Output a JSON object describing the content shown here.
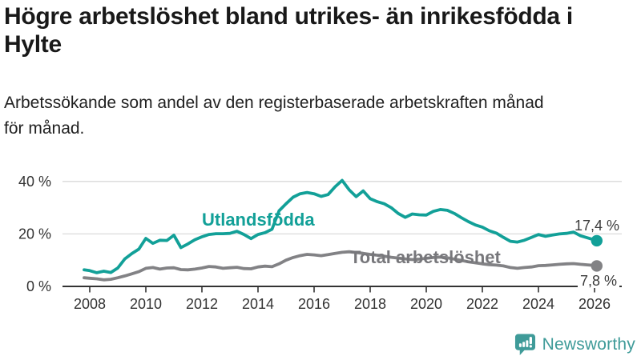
{
  "header": {
    "title_line1": "Högre arbetslöshet bland utrikes- än inrikesfödda i",
    "title_line2": "Hylte",
    "subtitle_line1": "Arbetssökande som andel av den registerbaserade arbetskraften månad",
    "subtitle_line2": "för månad."
  },
  "chart_data": {
    "type": "line",
    "title": "Högre arbetslöshet bland utrikes- än inrikesfödda i Hylte",
    "xlabel": "",
    "ylabel": "",
    "x_unit": "decimal_year",
    "xlim": [
      2007.8,
      2026.9
    ],
    "ylim": [
      0,
      44
    ],
    "grid": "horizontal",
    "legend_position": "inline-labels-on-chart",
    "x_ticks": [
      2008,
      2010,
      2012,
      2014,
      2016,
      2018,
      2020,
      2022,
      2024,
      2026
    ],
    "y_ticks": [
      {
        "value": 0,
        "label": "0 %"
      },
      {
        "value": 20,
        "label": "20 %"
      },
      {
        "value": 40,
        "label": "40 %"
      }
    ],
    "x": [
      2007.8,
      2008,
      2008.25,
      2008.5,
      2008.75,
      2009,
      2009.25,
      2009.5,
      2009.75,
      2010,
      2010.25,
      2010.5,
      2010.75,
      2011,
      2011.25,
      2011.5,
      2011.75,
      2012,
      2012.25,
      2012.5,
      2012.75,
      2013,
      2013.25,
      2013.5,
      2013.75,
      2014,
      2014.25,
      2014.5,
      2014.75,
      2015,
      2015.25,
      2015.5,
      2015.75,
      2016,
      2016.25,
      2016.5,
      2016.75,
      2017,
      2017.25,
      2017.5,
      2017.75,
      2018,
      2018.25,
      2018.5,
      2018.75,
      2019,
      2019.25,
      2019.5,
      2019.75,
      2020,
      2020.25,
      2020.5,
      2020.75,
      2021,
      2021.25,
      2021.5,
      2021.75,
      2022,
      2022.25,
      2022.5,
      2022.75,
      2023,
      2023.25,
      2023.5,
      2023.75,
      2024,
      2024.25,
      2024.5,
      2024.75,
      2025,
      2025.25,
      2025.5,
      2025.75,
      2026,
      2026.08
    ],
    "series": [
      {
        "name": "Utlandsfödda",
        "color": "#12a098",
        "end_label": "17,4 %",
        "end_value": 17.4,
        "values": [
          6.3,
          6.0,
          5.2,
          5.8,
          5.3,
          7.0,
          10.5,
          12.5,
          14.2,
          18.3,
          16.4,
          17.6,
          17.5,
          19.5,
          14.8,
          16.2,
          17.8,
          18.9,
          19.8,
          20.1,
          20.1,
          20.2,
          21.0,
          19.8,
          18.2,
          19.8,
          20.5,
          21.8,
          28.8,
          31.5,
          34.0,
          35.3,
          35.8,
          35.3,
          34.3,
          35.0,
          38.0,
          40.4,
          36.8,
          34.2,
          36.4,
          33.4,
          32.3,
          31.5,
          30.0,
          27.8,
          26.3,
          27.6,
          27.3,
          27.2,
          28.6,
          29.3,
          29.0,
          27.8,
          26.2,
          24.7,
          23.4,
          22.6,
          21.2,
          20.3,
          18.7,
          17.2,
          16.9,
          17.6,
          18.7,
          19.8,
          19.1,
          19.6,
          20.0,
          20.2,
          20.7,
          19.3,
          18.5,
          17.7,
          17.4
        ]
      },
      {
        "name": "Total arbetslöshet",
        "color": "#828285",
        "end_label": "7,8 %",
        "end_value": 7.8,
        "values": [
          3.3,
          3.1,
          2.9,
          2.5,
          2.7,
          3.3,
          4.0,
          4.8,
          5.6,
          6.9,
          7.2,
          6.6,
          7.0,
          7.1,
          6.4,
          6.3,
          6.6,
          7.0,
          7.6,
          7.4,
          6.9,
          7.1,
          7.3,
          6.8,
          6.7,
          7.4,
          7.7,
          7.5,
          8.6,
          10.0,
          11.0,
          11.7,
          12.2,
          12.0,
          11.7,
          12.1,
          12.6,
          13.0,
          13.2,
          12.9,
          12.6,
          12.2,
          11.9,
          11.5,
          11.1,
          10.8,
          10.5,
          10.2,
          10.4,
          10.7,
          11.0,
          11.2,
          10.9,
          10.4,
          9.9,
          9.4,
          9.0,
          8.6,
          8.3,
          8.1,
          7.8,
          7.2,
          6.9,
          7.2,
          7.4,
          7.9,
          8.0,
          8.2,
          8.4,
          8.6,
          8.7,
          8.4,
          8.2,
          8.0,
          7.8
        ]
      }
    ]
  },
  "footer": {
    "brand": "Newsworthy"
  },
  "colors": {
    "teal": "#12a098",
    "gray_line": "#828285",
    "gray_label": "#77777b",
    "title_text": "#191919",
    "axis_text": "#333333",
    "value_text": "#3b3b3b",
    "grid": "#dadada",
    "axis": "#333333",
    "brand_teal": "#3f9b99"
  }
}
